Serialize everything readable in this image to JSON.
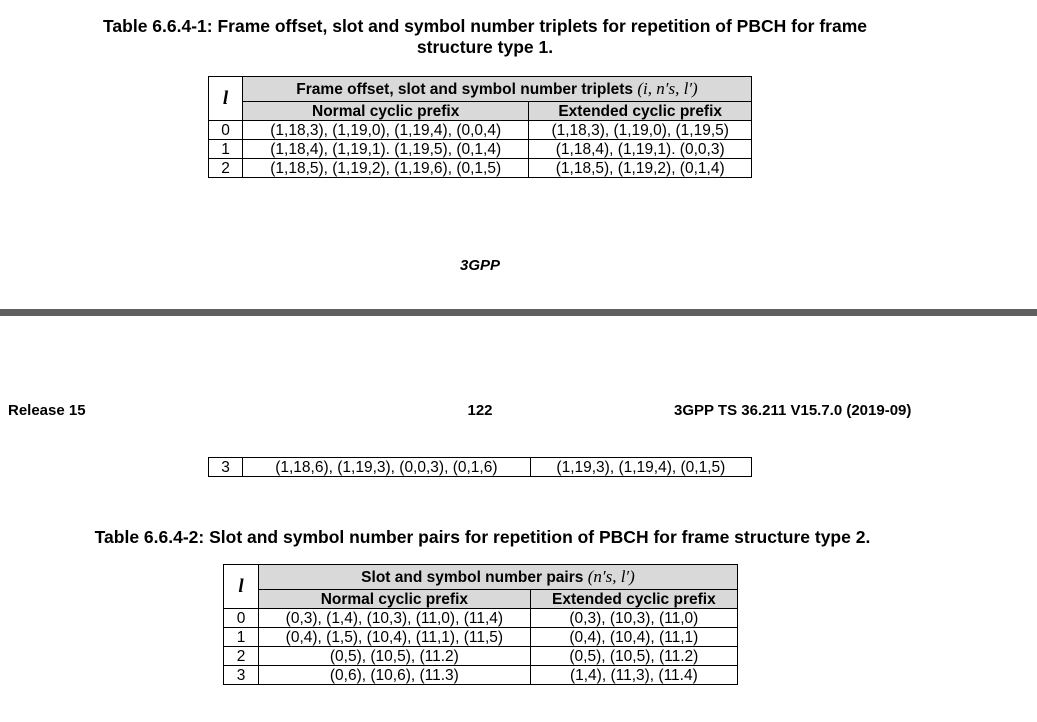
{
  "table1": {
    "caption_line1": "Table 6.6.4-1: Frame offset, slot and symbol number triplets for repetition of PBCH for frame",
    "caption_line2": "structure type 1.",
    "var_header": "l",
    "group_header": "Frame offset, slot and symbol number triplets",
    "group_math": "(i, n′s, l′)",
    "col_normal": "Normal cyclic prefix",
    "col_extended": "Extended cyclic prefix",
    "rows": [
      {
        "l": "0",
        "normal": "(1,18,3), (1,19,0), (1,19,4), (0,0,4)",
        "extended": "(1,18,3), (1,19,0), (1,19,5)"
      },
      {
        "l": "1",
        "normal": "(1,18,4), (1,19,1). (1,19,5), (0,1,4)",
        "extended": "(1,18,4), (1,19,1). (0,0,3)"
      },
      {
        "l": "2",
        "normal": "(1,18,5), (1,19,2), (1,19,6), (0,1,5)",
        "extended": "(1,18,5), (1,19,2), (0,1,4)"
      }
    ],
    "continued_row": {
      "l": "3",
      "normal": "(1,18,6), (1,19,3), (0,0,3), (0,1,6)",
      "extended": "(1,19,3), (1,19,4), (0,1,5)"
    }
  },
  "footer_mark": "3GPP",
  "page_header": {
    "release": "Release 15",
    "page_number": "122",
    "spec": "3GPP TS 36.211 V15.7.0 (2019-09)"
  },
  "table2": {
    "caption": "Table 6.6.4-2: Slot and symbol number pairs for repetition of PBCH for frame structure type 2.",
    "var_header": "l",
    "group_header": "Slot and symbol number pairs",
    "group_math": "(n′s, l′)",
    "col_normal": "Normal cyclic prefix",
    "col_extended": "Extended cyclic prefix",
    "rows": [
      {
        "l": "0",
        "normal": "(0,3), (1,4), (10,3), (11,0), (11,4)",
        "extended": "(0,3), (10,3), (11,0)"
      },
      {
        "l": "1",
        "normal": "(0,4), (1,5), (10,4), (11,1), (11,5)",
        "extended": "(0,4), (10,4), (11,1)"
      },
      {
        "l": "2",
        "normal": "(0,5), (10,5), (11.2)",
        "extended": "(0,5), (10,5), (11.2)"
      },
      {
        "l": "3",
        "normal": "(0,6), (10,6), (11.3)",
        "extended": "(1,4), (11,3), (11.4)"
      }
    ]
  }
}
